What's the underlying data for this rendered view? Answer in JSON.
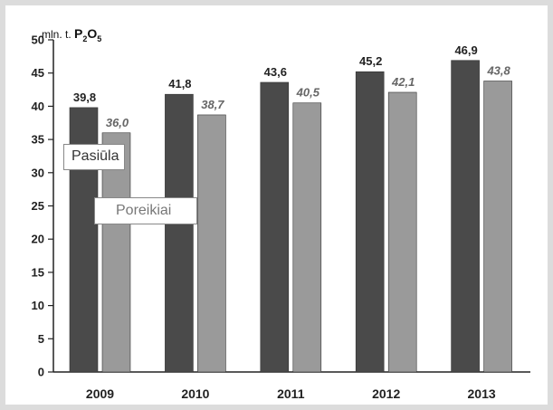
{
  "chart_data": {
    "type": "bar",
    "unit_label": {
      "prefix": "mln. t. ",
      "p": "P",
      "p_sub": "2",
      "o": "O",
      "o_sub": "5"
    },
    "categories": [
      "2009",
      "2010",
      "2011",
      "2012",
      "2013"
    ],
    "series": [
      {
        "name": "Pasiūla",
        "values": [
          39.8,
          41.8,
          43.6,
          45.2,
          46.9
        ],
        "labels": [
          "39,8",
          "41,8",
          "43,6",
          "45,2",
          "46,9"
        ],
        "color": "#4a4a4a"
      },
      {
        "name": "Poreikiai",
        "values": [
          36.0,
          38.7,
          40.5,
          42.1,
          43.8
        ],
        "labels": [
          "36,0",
          "38,7",
          "40,5",
          "42,1",
          "43,8"
        ],
        "color": "#9a9a9a"
      }
    ],
    "ylim": [
      0,
      50
    ],
    "yticks": [
      0,
      5,
      10,
      15,
      20,
      25,
      30,
      35,
      40,
      45,
      50
    ],
    "grid": false,
    "legend_placement": "inside-left"
  }
}
